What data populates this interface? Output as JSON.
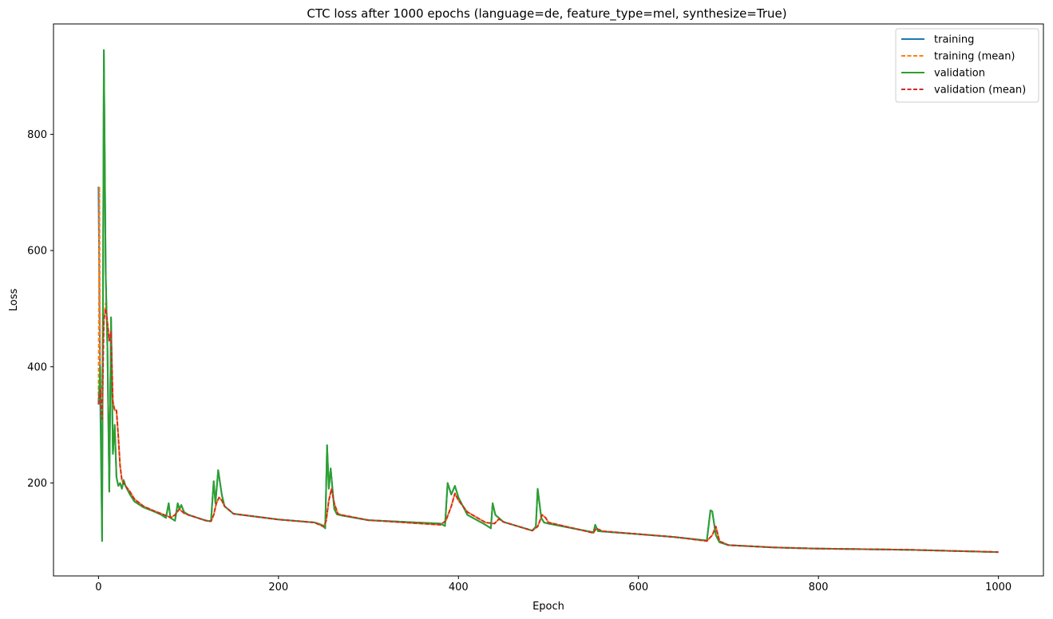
{
  "chart_data": {
    "type": "line",
    "title": "CTC loss after 1000 epochs (language=de, feature_type=mel, synthesize=True)",
    "xlabel": "Epoch",
    "ylabel": "Loss",
    "xlim": [
      -50,
      1050
    ],
    "ylim": [
      40,
      990
    ],
    "xticks": [
      0,
      200,
      400,
      600,
      800,
      1000
    ],
    "yticks": [
      200,
      400,
      600,
      800
    ],
    "grid": false,
    "legend_position": "top-right",
    "series": [
      {
        "name": "training",
        "color": "#1f77b4",
        "dash": "solid",
        "x": [
          0,
          2,
          4,
          6,
          8,
          10,
          12,
          14,
          16,
          18,
          20,
          22,
          24,
          26,
          28,
          30,
          35,
          40,
          50,
          60,
          70,
          75,
          78,
          80,
          85,
          88,
          90,
          92,
          95,
          100,
          110,
          120,
          125,
          128,
          130,
          133,
          137,
          140,
          150,
          200,
          240,
          248,
          252,
          254,
          256,
          258,
          262,
          265,
          270,
          300,
          380,
          385,
          388,
          392,
          396,
          400,
          410,
          430,
          436,
          438,
          441,
          450,
          482,
          486,
          488,
          492,
          495,
          500,
          550,
          552,
          555,
          600,
          640,
          676,
          680,
          682,
          686,
          690,
          700,
          750,
          800,
          900,
          1000
        ],
        "y": [
          710,
          340,
          100,
          945,
          560,
          430,
          185,
          485,
          250,
          300,
          210,
          195,
          200,
          190,
          205,
          195,
          180,
          168,
          158,
          152,
          145,
          140,
          165,
          140,
          135,
          165,
          155,
          162,
          150,
          145,
          140,
          135,
          134,
          203,
          165,
          222,
          180,
          160,
          147,
          137,
          132,
          128,
          122,
          265,
          190,
          225,
          155,
          146,
          144,
          136,
          130,
          126,
          200,
          180,
          195,
          175,
          145,
          128,
          122,
          165,
          145,
          133,
          118,
          125,
          190,
          140,
          132,
          130,
          115,
          128,
          117,
          112,
          107,
          101,
          153,
          151,
          110,
          98,
          93,
          89,
          87,
          85,
          81
        ]
      },
      {
        "name": "training (mean)",
        "color": "#ff7f0e",
        "dash": "dashed",
        "x": [
          0,
          1,
          2,
          4,
          6,
          8,
          10,
          12,
          14,
          16,
          18,
          20,
          22,
          24,
          26,
          28,
          30,
          35,
          40,
          50,
          60,
          70,
          78,
          80,
          85,
          90,
          92,
          95,
          100,
          110,
          120,
          125,
          128,
          131,
          134,
          137,
          140,
          150,
          200,
          240,
          250,
          253,
          256,
          259,
          262,
          266,
          270,
          300,
          380,
          386,
          392,
          396,
          400,
          410,
          430,
          440,
          445,
          450,
          482,
          488,
          493,
          497,
          500,
          550,
          553,
          560,
          600,
          640,
          676,
          682,
          686,
          690,
          700,
          750,
          800,
          900,
          1000
        ],
        "y": [
          340,
          710,
          345,
          370,
          480,
          510,
          475,
          445,
          460,
          340,
          325,
          325,
          280,
          230,
          205,
          200,
          195,
          185,
          172,
          160,
          153,
          147,
          142,
          140,
          145,
          155,
          152,
          148,
          145,
          140,
          135,
          134,
          145,
          165,
          175,
          170,
          160,
          147,
          137,
          132,
          125,
          135,
          170,
          190,
          165,
          147,
          145,
          136,
          128,
          135,
          160,
          182,
          170,
          150,
          132,
          130,
          138,
          133,
          118,
          125,
          145,
          140,
          132,
          114,
          122,
          117,
          112,
          107,
          100,
          110,
          125,
          100,
          93,
          89,
          87,
          85,
          81
        ]
      },
      {
        "name": "validation",
        "color": "#2ca02c",
        "dash": "solid",
        "x": [
          0,
          2,
          4,
          6,
          8,
          10,
          12,
          14,
          16,
          18,
          20,
          22,
          24,
          26,
          28,
          30,
          35,
          40,
          50,
          60,
          70,
          75,
          78,
          80,
          85,
          88,
          90,
          92,
          95,
          100,
          110,
          120,
          125,
          128,
          130,
          133,
          137,
          140,
          150,
          200,
          240,
          248,
          252,
          254,
          256,
          258,
          262,
          265,
          270,
          300,
          380,
          385,
          388,
          392,
          396,
          400,
          410,
          430,
          436,
          438,
          441,
          450,
          482,
          486,
          488,
          492,
          495,
          500,
          550,
          552,
          555,
          600,
          640,
          676,
          680,
          682,
          686,
          690,
          700,
          750,
          800,
          900,
          1000
        ],
        "y": [
          335,
          400,
          100,
          945,
          560,
          430,
          185,
          485,
          250,
          300,
          210,
          195,
          200,
          190,
          205,
          195,
          180,
          168,
          158,
          152,
          145,
          140,
          165,
          140,
          135,
          165,
          155,
          162,
          150,
          145,
          140,
          135,
          134,
          203,
          165,
          222,
          180,
          160,
          147,
          137,
          132,
          128,
          122,
          265,
          190,
          225,
          155,
          146,
          144,
          136,
          130,
          126,
          200,
          180,
          195,
          175,
          145,
          128,
          122,
          165,
          145,
          133,
          118,
          125,
          190,
          140,
          132,
          130,
          115,
          128,
          117,
          112,
          107,
          101,
          153,
          151,
          110,
          98,
          93,
          89,
          87,
          85,
          81
        ]
      },
      {
        "name": "validation (mean)",
        "color": "#d62728",
        "dash": "dashed",
        "x": [
          0,
          2,
          4,
          6,
          8,
          10,
          12,
          14,
          16,
          18,
          20,
          22,
          24,
          26,
          28,
          30,
          35,
          40,
          50,
          60,
          70,
          78,
          80,
          85,
          90,
          92,
          95,
          100,
          110,
          120,
          125,
          128,
          131,
          134,
          137,
          140,
          150,
          200,
          240,
          250,
          253,
          256,
          259,
          262,
          266,
          270,
          300,
          380,
          386,
          392,
          396,
          400,
          410,
          430,
          440,
          445,
          450,
          482,
          488,
          493,
          497,
          500,
          550,
          553,
          560,
          600,
          640,
          676,
          682,
          686,
          690,
          700,
          750,
          800,
          900,
          1000
        ],
        "y": [
          335,
          360,
          310,
          480,
          500,
          475,
          445,
          460,
          340,
          325,
          325,
          280,
          230,
          205,
          200,
          195,
          185,
          172,
          160,
          153,
          147,
          142,
          140,
          145,
          155,
          152,
          148,
          145,
          140,
          135,
          134,
          145,
          165,
          175,
          170,
          160,
          147,
          137,
          132,
          125,
          135,
          170,
          190,
          165,
          147,
          145,
          136,
          128,
          135,
          160,
          182,
          170,
          150,
          132,
          130,
          138,
          133,
          118,
          125,
          145,
          140,
          132,
          114,
          122,
          117,
          112,
          107,
          100,
          110,
          125,
          100,
          93,
          89,
          87,
          85,
          81
        ]
      }
    ]
  }
}
